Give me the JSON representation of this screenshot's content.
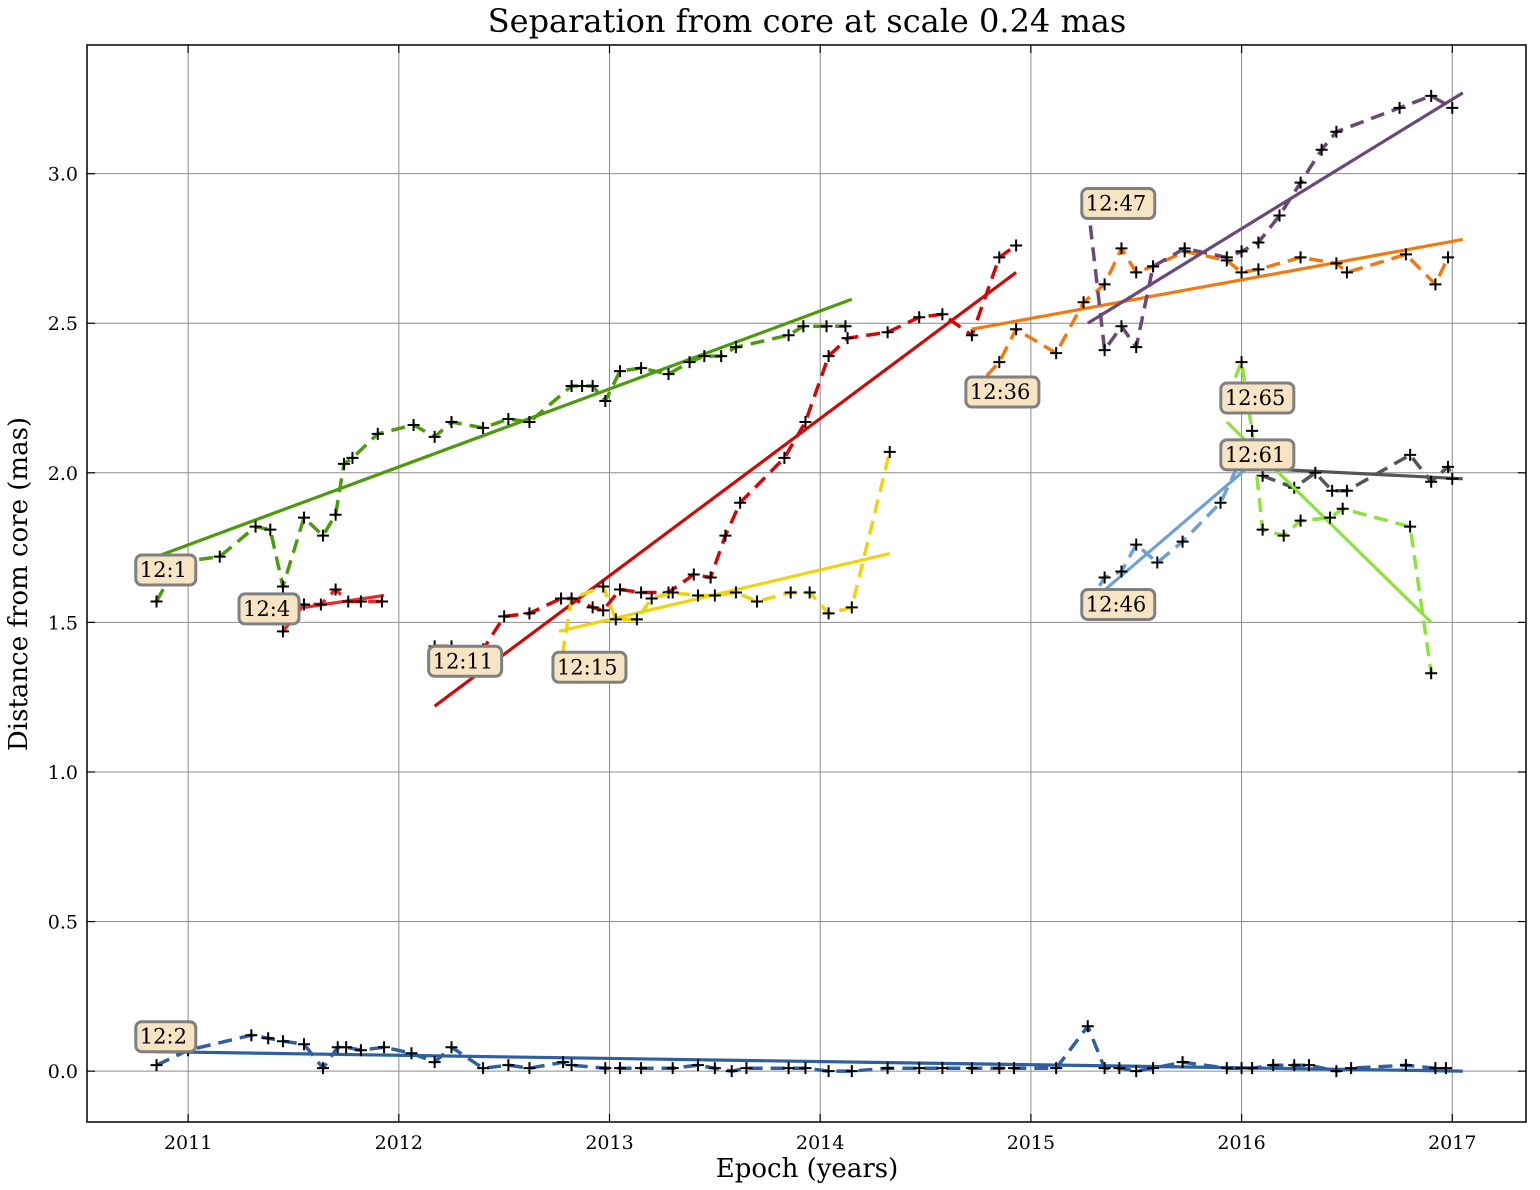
{
  "chart_data": {
    "type": "line",
    "title": "Separation from core at scale 0.24 mas",
    "xlabel": "Epoch (years)",
    "ylabel": "Distance from core (mas)",
    "xlim": [
      2010.52,
      2017.35
    ],
    "ylim": [
      -0.17,
      3.43
    ],
    "xticks": [
      2011,
      2012,
      2013,
      2014,
      2015,
      2016,
      2017
    ],
    "yticks": [
      0.0,
      0.5,
      1.0,
      1.5,
      2.0,
      2.5,
      3.0
    ],
    "xtick_labels": [
      "2011",
      "2012",
      "2013",
      "2014",
      "2015",
      "2016",
      "2017"
    ],
    "ytick_labels": [
      "0.0",
      "0.5",
      "1.0",
      "1.5",
      "2.0",
      "2.5",
      "3.0"
    ],
    "grid": true,
    "series": [
      {
        "color": "#4d9a0e",
        "label": "12:1",
        "label_x": 2010.78,
        "label_y": 1.675,
        "data_x": [
          2010.85,
          2010.95,
          2011.15,
          2011.32,
          2011.39,
          2011.45,
          2011.55,
          2011.64,
          2011.7,
          2011.74,
          2011.78,
          2011.9,
          2012.07,
          2012.17,
          2012.25,
          2012.4,
          2012.52,
          2012.62,
          2012.82,
          2012.87,
          2012.92,
          2012.98,
          2013.05,
          2013.15,
          2013.28,
          2013.38,
          2013.45,
          2013.53,
          2013.6,
          2013.85,
          2013.92,
          2014.03,
          2014.12
        ],
        "data_y": [
          1.57,
          1.7,
          1.72,
          1.82,
          1.81,
          1.62,
          1.85,
          1.79,
          1.86,
          2.03,
          2.05,
          2.13,
          2.16,
          2.12,
          2.17,
          2.15,
          2.18,
          2.17,
          2.29,
          2.29,
          2.29,
          2.24,
          2.34,
          2.35,
          2.33,
          2.37,
          2.39,
          2.39,
          2.42,
          2.46,
          2.49,
          2.49,
          2.49
        ],
        "fit": [
          [
            2010.85,
            1.72
          ],
          [
            2014.15,
            2.58
          ]
        ]
      },
      {
        "color": "#e8272a",
        "label": "12:4",
        "label_x": 2011.27,
        "label_y": 1.545,
        "data_x": [
          2011.28,
          2011.38,
          2011.45,
          2011.55,
          2011.63,
          2011.7,
          2011.76,
          2011.82,
          2011.92
        ],
        "data_y": [
          1.52,
          1.53,
          1.47,
          1.56,
          1.56,
          1.61,
          1.57,
          1.57,
          1.57
        ],
        "fit": [
          [
            2011.27,
            1.52
          ],
          [
            2011.93,
            1.59
          ]
        ]
      },
      {
        "color": "#2e5f9e",
        "label": "12:2",
        "label_x": 2010.78,
        "label_y": 0.115,
        "data_x": [
          2010.85,
          2011.0,
          2011.3,
          2011.38,
          2011.45,
          2011.55,
          2011.64,
          2011.71,
          2011.75,
          2011.82,
          2011.93,
          2012.06,
          2012.17,
          2012.25,
          2012.4,
          2012.52,
          2012.62,
          2012.78,
          2012.82,
          2012.98,
          2013.05,
          2013.15,
          2013.3,
          2013.42,
          2013.5,
          2013.58,
          2013.65,
          2013.85,
          2013.93,
          2014.04,
          2014.15,
          2014.32,
          2014.47,
          2014.58,
          2014.72,
          2014.85,
          2014.92,
          2015.12,
          2015.27,
          2015.35,
          2015.42,
          2015.5,
          2015.58,
          2015.72,
          2015.93,
          2016.0,
          2016.05,
          2016.15,
          2016.25,
          2016.32,
          2016.45,
          2016.52,
          2016.78,
          2016.92,
          2016.97
        ],
        "data_y": [
          0.02,
          0.07,
          0.12,
          0.11,
          0.1,
          0.09,
          0.01,
          0.08,
          0.08,
          0.07,
          0.08,
          0.06,
          0.03,
          0.08,
          0.01,
          0.02,
          0.01,
          0.03,
          0.02,
          0.01,
          0.01,
          0.01,
          0.01,
          0.02,
          0.01,
          0.0,
          0.01,
          0.01,
          0.01,
          0.0,
          0.0,
          0.01,
          0.01,
          0.01,
          0.01,
          0.01,
          0.01,
          0.01,
          0.15,
          0.01,
          0.01,
          0.0,
          0.01,
          0.03,
          0.01,
          0.01,
          0.01,
          0.02,
          0.02,
          0.02,
          0.0,
          0.01,
          0.02,
          0.01,
          0.01
        ],
        "fit": [
          [
            2010.85,
            0.065
          ],
          [
            2017.05,
            0.0
          ]
        ]
      },
      {
        "color": "#cc0a0a",
        "label": "12:11",
        "label_x": 2012.17,
        "label_y": 1.37,
        "data_x": [
          2012.17,
          2012.25,
          2012.4,
          2012.5,
          2012.62,
          2012.77,
          2012.82,
          2012.92,
          2012.97,
          2013.05,
          2013.15,
          2013.28,
          2013.4,
          2013.48,
          2013.55,
          2013.62,
          2013.83,
          2013.93,
          2014.04,
          2014.13,
          2014.32,
          2014.47,
          2014.58,
          2014.72,
          2014.85,
          2014.93
        ],
        "data_y": [
          1.42,
          1.42,
          1.41,
          1.52,
          1.53,
          1.58,
          1.58,
          1.55,
          1.54,
          1.61,
          1.6,
          1.6,
          1.66,
          1.65,
          1.79,
          1.9,
          2.05,
          2.17,
          2.39,
          2.45,
          2.47,
          2.52,
          2.53,
          2.46,
          2.72,
          2.76
        ],
        "fit": [
          [
            2012.17,
            1.22
          ],
          [
            2014.93,
            2.67
          ]
        ]
      },
      {
        "color": "#efd30c",
        "label": "12:15",
        "label_x": 2012.76,
        "label_y": 1.35,
        "data_x": [
          2012.76,
          2012.82,
          2012.97,
          2013.03,
          2013.13,
          2013.2,
          2013.3,
          2013.42,
          2013.5,
          2013.6,
          2013.7,
          2013.86,
          2013.95,
          2014.04,
          2014.15,
          2014.33
        ],
        "data_y": [
          1.32,
          1.58,
          1.62,
          1.51,
          1.51,
          1.58,
          1.6,
          1.59,
          1.59,
          1.6,
          1.57,
          1.6,
          1.6,
          1.53,
          1.55,
          2.07
        ],
        "fit": [
          [
            2012.76,
            1.47
          ],
          [
            2014.33,
            1.73
          ]
        ]
      },
      {
        "color": "#f07a10",
        "label": "12:36",
        "label_x": 2014.72,
        "label_y": 2.27,
        "data_x": [
          2014.72,
          2014.85,
          2014.93,
          2015.12,
          2015.25,
          2015.35,
          2015.43,
          2015.5,
          2015.58,
          2015.73,
          2015.93,
          2016.0,
          2016.08,
          2016.28,
          2016.45,
          2016.5,
          2016.78,
          2016.92,
          2016.98
        ],
        "data_y": [
          2.27,
          2.37,
          2.48,
          2.4,
          2.57,
          2.63,
          2.75,
          2.67,
          2.69,
          2.74,
          2.71,
          2.67,
          2.68,
          2.72,
          2.7,
          2.67,
          2.73,
          2.63,
          2.72
        ],
        "fit": [
          [
            2014.72,
            2.48
          ],
          [
            2017.05,
            2.78
          ]
        ]
      },
      {
        "color": "#6b4878",
        "label": "12:47",
        "label_x": 2015.27,
        "label_y": 2.9,
        "data_x": [
          2015.27,
          2015.35,
          2015.43,
          2015.5,
          2015.58,
          2015.73,
          2015.93,
          2016.0,
          2016.08,
          2016.18,
          2016.28,
          2016.38,
          2016.45,
          2016.75,
          2016.9,
          2017.0
        ],
        "data_y": [
          2.9,
          2.41,
          2.49,
          2.42,
          2.69,
          2.75,
          2.72,
          2.74,
          2.77,
          2.86,
          2.97,
          3.08,
          3.14,
          3.22,
          3.26,
          3.22
        ],
        "fit": [
          [
            2015.27,
            2.5
          ],
          [
            2017.05,
            3.27
          ]
        ]
      },
      {
        "color": "#6ea1d1",
        "label": "12:46",
        "label_x": 2015.27,
        "label_y": 1.56,
        "data_x": [
          2015.27,
          2015.35,
          2015.43,
          2015.5,
          2015.6,
          2015.72,
          2015.9,
          2016.0
        ],
        "data_y": [
          1.56,
          1.65,
          1.67,
          1.76,
          1.7,
          1.77,
          1.9,
          2.05
        ],
        "fit": [
          [
            2015.27,
            1.56
          ],
          [
            2016.05,
            2.03
          ]
        ]
      },
      {
        "color": "#555555",
        "label": "12:61",
        "label_x": 2015.93,
        "label_y": 2.06,
        "data_x": [
          2015.93,
          2016.0,
          2016.1,
          2016.25,
          2016.35,
          2016.43,
          2016.5,
          2016.8,
          2016.9,
          2016.98,
          2017.0
        ],
        "data_y": [
          2.06,
          2.06,
          1.99,
          1.95,
          2.0,
          1.94,
          1.94,
          2.06,
          1.97,
          2.02,
          1.98
        ],
        "fit": [
          [
            2015.93,
            2.02
          ],
          [
            2017.05,
            1.98
          ]
        ]
      },
      {
        "color": "#8de23c",
        "label": "12:65",
        "label_x": 2015.93,
        "label_y": 2.25,
        "data_x": [
          2015.93,
          2016.0,
          2016.05,
          2016.1,
          2016.2,
          2016.28,
          2016.42,
          2016.48,
          2016.8,
          2016.9
        ],
        "data_y": [
          2.25,
          2.37,
          2.14,
          1.81,
          1.79,
          1.84,
          1.85,
          1.88,
          1.82,
          1.33
        ],
        "fit": [
          [
            2015.93,
            2.17
          ],
          [
            2016.9,
            1.5
          ]
        ]
      }
    ]
  }
}
